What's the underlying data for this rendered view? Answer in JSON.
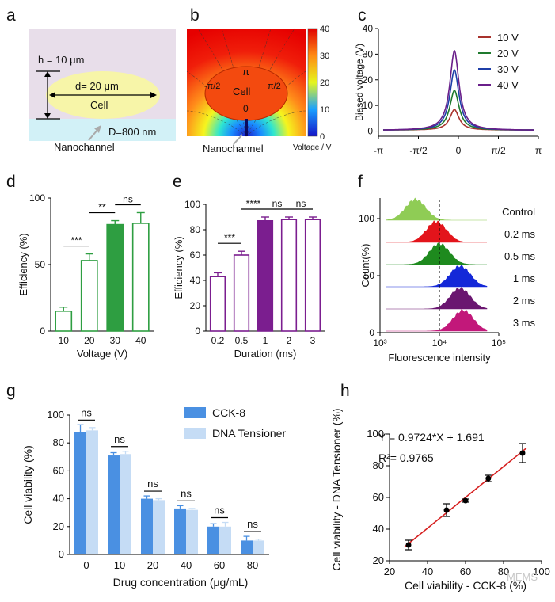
{
  "colors": {
    "green": "#2e9e41",
    "purple": "#7b1e8f",
    "blue": "#4a90e2",
    "lightblue": "#c5dcf5",
    "red": "#d62020"
  },
  "panel_labels": [
    "a",
    "b",
    "c",
    "d",
    "e",
    "f",
    "g",
    "h"
  ],
  "panel_a": {
    "h_label": "h = 10 μm",
    "d_label": "d= 20 μm",
    "cell_label": "Cell",
    "D_label": "D=800 nm",
    "nanochannel": "Nanochannel"
  },
  "panel_b": {
    "pi_top": "π",
    "pi_left": "-π/2",
    "pi_right": "π/2",
    "zero": "0",
    "cell_label": "Cell",
    "nanochannel": "Nanochannel",
    "colorbar_ticks": [
      "40",
      "30",
      "20",
      "10",
      "0"
    ],
    "colorbar_unit": "Voltage / V"
  },
  "chart_data": [
    {
      "panel": "c",
      "type": "line",
      "ylabel": "Biased voltage (V)",
      "ylim": [
        -2,
        40
      ],
      "yticks": [
        "0",
        "10",
        "20",
        "30",
        "40"
      ],
      "xticks": [
        "-π",
        "-π/2",
        "0",
        "π/2",
        "π"
      ],
      "series": [
        {
          "name": "10 V",
          "color": "#a8322d",
          "peak": 8
        },
        {
          "name": "20 V",
          "color": "#1f7a2e",
          "peak": 15.5
        },
        {
          "name": "30 V",
          "color": "#1f3fa8",
          "peak": 23.5
        },
        {
          "name": "40 V",
          "color": "#6a1f8a",
          "peak": 31
        }
      ]
    },
    {
      "panel": "d",
      "type": "bar",
      "categories": [
        "10",
        "20",
        "30",
        "40"
      ],
      "values": [
        15,
        53,
        80,
        81
      ],
      "errors": [
        3,
        5,
        3,
        8
      ],
      "filled": [
        false,
        false,
        true,
        false
      ],
      "xlabel": "Voltage (V)",
      "ylabel": "Efficiency (%)",
      "ylim": [
        0,
        100
      ],
      "yticks": [
        "0",
        "50",
        "100"
      ],
      "significance": [
        {
          "label": "***",
          "from": 0,
          "to": 1
        },
        {
          "label": "**",
          "from": 1,
          "to": 2
        },
        {
          "label": "ns",
          "from": 2,
          "to": 3
        }
      ]
    },
    {
      "panel": "e",
      "type": "bar",
      "categories": [
        "0.2",
        "0.5",
        "1",
        "2",
        "3"
      ],
      "values": [
        43,
        60,
        87,
        88,
        88
      ],
      "errors": [
        3,
        3,
        3,
        2,
        2
      ],
      "filled": [
        false,
        false,
        true,
        false,
        false
      ],
      "xlabel": "Duration (ms)",
      "ylabel": "Efficiency (%)",
      "ylim": [
        0,
        100
      ],
      "yticks": [
        "0",
        "20",
        "40",
        "60",
        "80",
        "100"
      ],
      "significance": [
        {
          "label": "***",
          "from": 0,
          "to": 1
        },
        {
          "label": "****",
          "from": 1,
          "to": 2
        },
        {
          "label": "ns",
          "from": 2,
          "to": 3
        },
        {
          "label": "ns",
          "from": 3,
          "to": 4
        }
      ]
    },
    {
      "panel": "f",
      "type": "area",
      "xlabel": "Fluorescence intensity",
      "ylabel": "Count(%)",
      "yticks": [
        "0",
        "50",
        "100"
      ],
      "xticks": [
        "10³",
        "10⁴",
        "10⁵"
      ],
      "series": [
        {
          "name": "Control",
          "color": "#8fcc55",
          "peak_log": 3.6
        },
        {
          "name": "0.2 ms",
          "color": "#e3141b",
          "peak_log": 3.95
        },
        {
          "name": "0.5 ms",
          "color": "#1e8a1e",
          "peak_log": 4.0
        },
        {
          "name": "1 ms",
          "color": "#1428d8",
          "peak_log": 4.35
        },
        {
          "name": "2 ms",
          "color": "#6a1670",
          "peak_log": 4.35
        },
        {
          "name": "3 ms",
          "color": "#c2187a",
          "peak_log": 4.4
        }
      ]
    },
    {
      "panel": "g",
      "type": "bar",
      "categories": [
        "0",
        "10",
        "20",
        "40",
        "60",
        "80"
      ],
      "xlabel": "Drug concentration (μg/mL)",
      "ylabel": "Cell viability (%)",
      "ylim": [
        0,
        100
      ],
      "yticks": [
        "0",
        "20",
        "40",
        "60",
        "80",
        "100"
      ],
      "series": [
        {
          "name": "CCK-8",
          "values": [
            88,
            71,
            40,
            33,
            20,
            10
          ],
          "errors": [
            5,
            2,
            2,
            2,
            2,
            3
          ]
        },
        {
          "name": "DNA Tensioner",
          "values": [
            89,
            72,
            39,
            32,
            20,
            10
          ],
          "errors": [
            2,
            2,
            1,
            1,
            3,
            1
          ]
        }
      ],
      "significance": [
        "ns",
        "ns",
        "ns",
        "ns",
        "ns",
        "ns"
      ]
    },
    {
      "panel": "h",
      "type": "scatter",
      "xlabel": "Cell viability - CCK-8 (%)",
      "ylabel": "Cell viability - DNA Tensioner (%)",
      "xlim": [
        20,
        100
      ],
      "ylim": [
        20,
        100
      ],
      "xticks": [
        "20",
        "40",
        "60",
        "80",
        "100"
      ],
      "yticks": [
        "20",
        "40",
        "60",
        "80",
        "100"
      ],
      "x": [
        30,
        50,
        60,
        72,
        90
      ],
      "y": [
        30,
        52,
        58,
        72,
        88
      ],
      "yerr": [
        3,
        4,
        1,
        2,
        6
      ],
      "equation": "Y = 0.9724*X + 1.691",
      "r2": "R²= 0.9765"
    }
  ],
  "watermark": "MEMS"
}
